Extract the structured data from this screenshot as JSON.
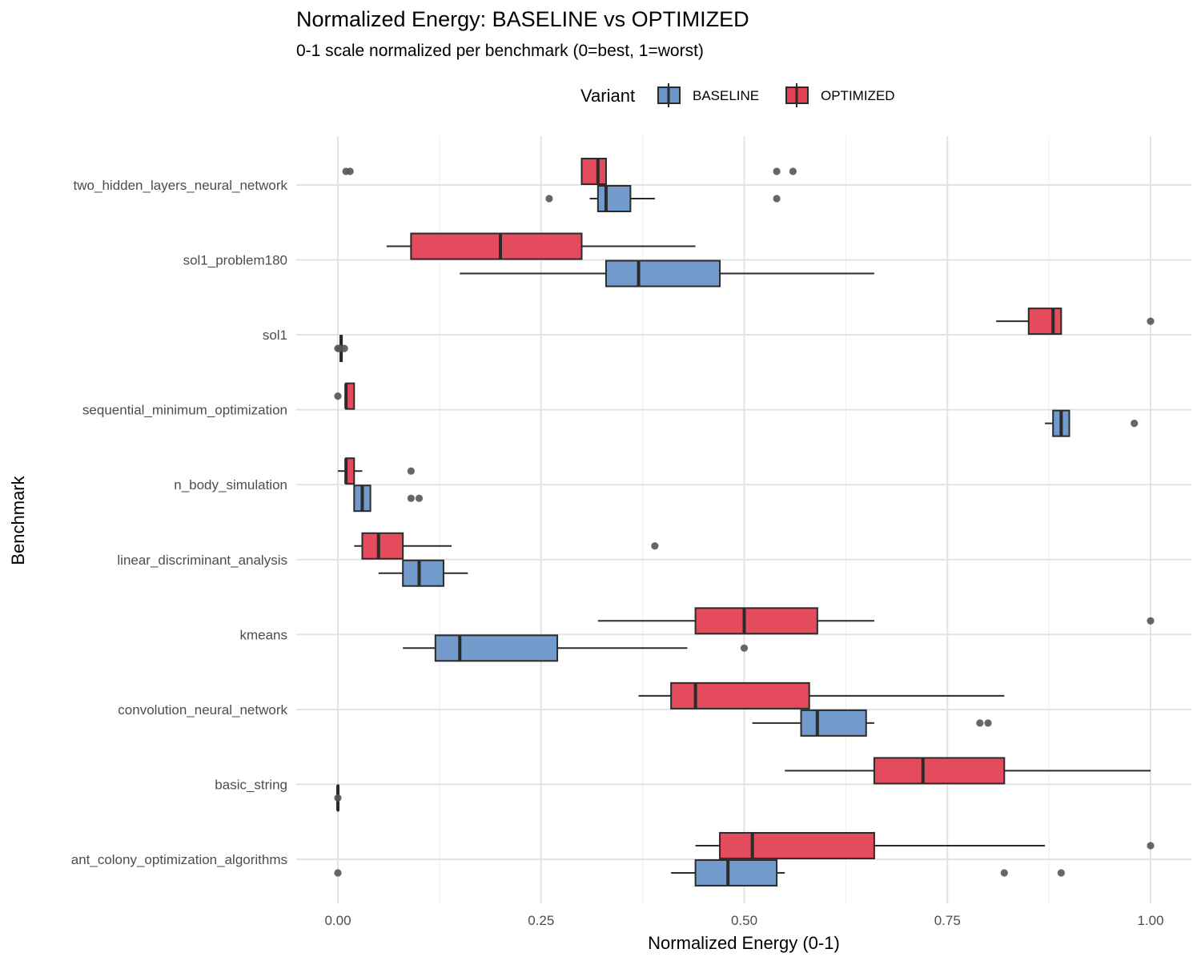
{
  "chart_data": {
    "type": "boxplot",
    "orientation": "horizontal",
    "title": "Normalized Energy: BASELINE vs OPTIMIZED",
    "subtitle": "0-1 scale normalized per benchmark (0=best, 1=worst)",
    "xlabel": "Normalized Energy (0-1)",
    "ylabel": "Benchmark",
    "xlim": [
      -0.1,
      1.05
    ],
    "x_ticks": [
      0,
      0.25,
      0.5,
      0.75,
      1
    ],
    "x_tick_labels": [
      "0.00",
      "0.25",
      "0.50",
      "0.75",
      "1.00"
    ],
    "grid": true,
    "legend": {
      "title": "Variant",
      "position": "top",
      "entries": [
        "BASELINE",
        "OPTIMIZED"
      ]
    },
    "colors": {
      "BASELINE": "#6a95c8",
      "OPTIMIZED": "#e34153",
      "outline": "#2b2b2b",
      "outlier": "#555555"
    },
    "categories": [
      "two_hidden_layers_neural_network",
      "sol1_problem180",
      "sol1",
      "sequential_minimum_optimization",
      "n_body_simulation",
      "linear_discriminant_analysis",
      "kmeans",
      "convolution_neural_network",
      "basic_string",
      "ant_colony_optimization_algorithms"
    ],
    "series": [
      {
        "name": "BASELINE",
        "boxes": [
          {
            "category": "two_hidden_layers_neural_network",
            "whisker_low": 0.31,
            "q1": 0.32,
            "median": 0.33,
            "q3": 0.36,
            "whisker_high": 0.39,
            "outliers": [
              0.26,
              0.54
            ]
          },
          {
            "category": "sol1_problem180",
            "whisker_low": 0.15,
            "q1": 0.33,
            "median": 0.37,
            "q3": 0.47,
            "whisker_high": 0.66,
            "outliers": []
          },
          {
            "category": "sol1",
            "whisker_low": 0.0,
            "q1": 0.003,
            "median": 0.004,
            "q3": 0.005,
            "whisker_high": 0.006,
            "outliers": [
              0.0,
              0.002,
              0.008
            ]
          },
          {
            "category": "sequential_minimum_optimization",
            "whisker_low": 0.87,
            "q1": 0.88,
            "median": 0.89,
            "q3": 0.9,
            "whisker_high": 0.9,
            "outliers": [
              0.98
            ]
          },
          {
            "category": "n_body_simulation",
            "whisker_low": 0.02,
            "q1": 0.02,
            "median": 0.03,
            "q3": 0.04,
            "whisker_high": 0.04,
            "outliers": [
              0.09,
              0.1
            ]
          },
          {
            "category": "linear_discriminant_analysis",
            "whisker_low": 0.05,
            "q1": 0.08,
            "median": 0.1,
            "q3": 0.13,
            "whisker_high": 0.16,
            "outliers": []
          },
          {
            "category": "kmeans",
            "whisker_low": 0.08,
            "q1": 0.12,
            "median": 0.15,
            "q3": 0.27,
            "whisker_high": 0.43,
            "outliers": [
              0.5
            ]
          },
          {
            "category": "convolution_neural_network",
            "whisker_low": 0.51,
            "q1": 0.57,
            "median": 0.59,
            "q3": 0.65,
            "whisker_high": 0.66,
            "outliers": [
              0.79,
              0.8
            ]
          },
          {
            "category": "basic_string",
            "whisker_low": 0.0,
            "q1": 0.0,
            "median": 0.0,
            "q3": 0.0,
            "whisker_high": 0.0,
            "outliers": [
              0.0
            ]
          },
          {
            "category": "ant_colony_optimization_algorithms",
            "whisker_low": 0.41,
            "q1": 0.44,
            "median": 0.48,
            "q3": 0.54,
            "whisker_high": 0.55,
            "outliers": [
              0.0,
              0.82,
              0.89
            ]
          }
        ]
      },
      {
        "name": "OPTIMIZED",
        "boxes": [
          {
            "category": "two_hidden_layers_neural_network",
            "whisker_low": 0.3,
            "q1": 0.3,
            "median": 0.32,
            "q3": 0.33,
            "whisker_high": 0.33,
            "outliers": [
              0.01,
              0.015,
              0.54,
              0.56
            ]
          },
          {
            "category": "sol1_problem180",
            "whisker_low": 0.06,
            "q1": 0.09,
            "median": 0.2,
            "q3": 0.3,
            "whisker_high": 0.44,
            "outliers": []
          },
          {
            "category": "sol1",
            "whisker_low": 0.81,
            "q1": 0.85,
            "median": 0.88,
            "q3": 0.89,
            "whisker_high": 0.89,
            "outliers": [
              1.0
            ]
          },
          {
            "category": "sequential_minimum_optimization",
            "whisker_low": 0.01,
            "q1": 0.01,
            "median": 0.01,
            "q3": 0.02,
            "whisker_high": 0.02,
            "outliers": [
              0.0
            ]
          },
          {
            "category": "n_body_simulation",
            "whisker_low": 0.0,
            "q1": 0.01,
            "median": 0.01,
            "q3": 0.02,
            "whisker_high": 0.03,
            "outliers": [
              0.09
            ]
          },
          {
            "category": "linear_discriminant_analysis",
            "whisker_low": 0.02,
            "q1": 0.03,
            "median": 0.05,
            "q3": 0.08,
            "whisker_high": 0.14,
            "outliers": [
              0.39
            ]
          },
          {
            "category": "kmeans",
            "whisker_low": 0.32,
            "q1": 0.44,
            "median": 0.5,
            "q3": 0.59,
            "whisker_high": 0.66,
            "outliers": [
              1.0
            ]
          },
          {
            "category": "convolution_neural_network",
            "whisker_low": 0.37,
            "q1": 0.41,
            "median": 0.44,
            "q3": 0.58,
            "whisker_high": 0.82,
            "outliers": []
          },
          {
            "category": "basic_string",
            "whisker_low": 0.55,
            "q1": 0.66,
            "median": 0.72,
            "q3": 0.82,
            "whisker_high": 1.0,
            "outliers": []
          },
          {
            "category": "ant_colony_optimization_algorithms",
            "whisker_low": 0.44,
            "q1": 0.47,
            "median": 0.51,
            "q3": 0.66,
            "whisker_high": 0.87,
            "outliers": [
              1.0
            ]
          }
        ]
      }
    ]
  }
}
